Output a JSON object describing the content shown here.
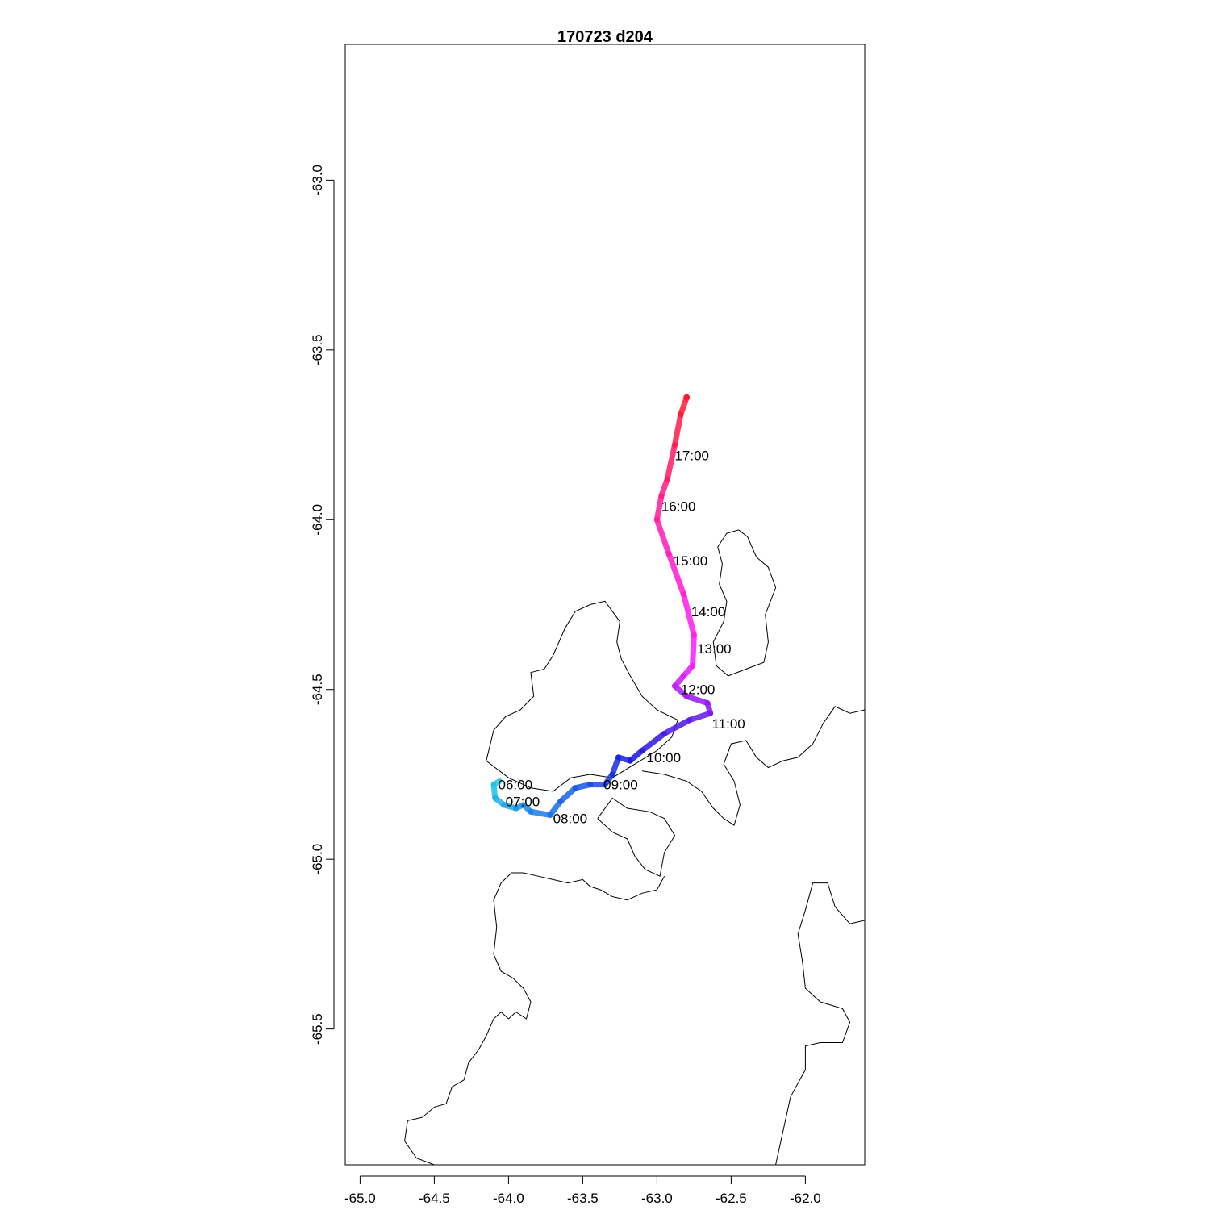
{
  "title": "170723   d204",
  "chart_data": {
    "type": "map-track",
    "title": "170723   d204",
    "xlabel": "",
    "ylabel": "",
    "xlim": [
      -65.1,
      -61.6
    ],
    "ylim": [
      -65.9,
      -62.6
    ],
    "x_ticks": [
      -65.0,
      -64.5,
      -64.0,
      -63.5,
      -63.0,
      -62.5,
      -62.0
    ],
    "x_tick_labels": [
      "-65.0",
      "-64.5",
      "-64.0",
      "-63.5",
      "-63.0",
      "-62.5",
      "-62.0"
    ],
    "y_ticks": [
      -63.0,
      -63.5,
      -64.0,
      -64.5,
      -65.0,
      -65.5
    ],
    "y_tick_labels": [
      "-63.0",
      "-63.5",
      "-64.0",
      "-64.5",
      "-65.0",
      "-65.5"
    ],
    "track": [
      [
        -64.06,
        -64.77
      ],
      [
        -64.1,
        -64.78
      ],
      [
        -64.09,
        -64.82
      ],
      [
        -64.03,
        -64.84
      ],
      [
        -63.95,
        -64.85
      ],
      [
        -63.9,
        -64.84
      ],
      [
        -63.85,
        -64.86
      ],
      [
        -63.72,
        -64.87
      ],
      [
        -63.65,
        -64.83
      ],
      [
        -63.55,
        -64.79
      ],
      [
        -63.45,
        -64.78
      ],
      [
        -63.35,
        -64.78
      ],
      [
        -63.3,
        -64.75
      ],
      [
        -63.26,
        -64.7
      ],
      [
        -63.18,
        -64.71
      ],
      [
        -63.1,
        -64.68
      ],
      [
        -62.95,
        -64.63
      ],
      [
        -62.78,
        -64.59
      ],
      [
        -62.64,
        -64.57
      ],
      [
        -62.66,
        -64.54
      ],
      [
        -62.8,
        -64.52
      ],
      [
        -62.88,
        -64.49
      ],
      [
        -62.82,
        -64.46
      ],
      [
        -62.76,
        -64.43
      ],
      [
        -62.75,
        -64.34
      ],
      [
        -62.82,
        -64.22
      ],
      [
        -62.92,
        -64.1
      ],
      [
        -63.0,
        -64.0
      ],
      [
        -62.97,
        -63.93
      ],
      [
        -62.93,
        -63.88
      ],
      [
        -62.88,
        -63.78
      ],
      [
        -62.84,
        -63.69
      ],
      [
        -62.8,
        -63.64
      ]
    ],
    "time_labels": [
      {
        "text": "06:00",
        "x": -64.07,
        "y": -64.78
      },
      {
        "text": "07:00",
        "x": -64.02,
        "y": -64.83
      },
      {
        "text": "08:00",
        "x": -63.7,
        "y": -64.88
      },
      {
        "text": "09:00",
        "x": -63.36,
        "y": -64.78
      },
      {
        "text": "10:00",
        "x": -63.07,
        "y": -64.7
      },
      {
        "text": "11:00",
        "x": -62.63,
        "y": -64.6
      },
      {
        "text": "12:00",
        "x": -62.84,
        "y": -64.5
      },
      {
        "text": "13:00",
        "x": -62.73,
        "y": -64.38
      },
      {
        "text": "14:00",
        "x": -62.77,
        "y": -64.27
      },
      {
        "text": "15:00",
        "x": -62.89,
        "y": -64.12
      },
      {
        "text": "16:00",
        "x": -62.97,
        "y": -63.96
      },
      {
        "text": "17:00",
        "x": -62.88,
        "y": -63.81
      }
    ],
    "colors": {
      "track_start": "#1ecbeb",
      "track_mid": "#1515e0",
      "track_magenta": "#ff1aff",
      "track_end": "#ff1a30",
      "coastline": "#000000"
    }
  },
  "coastlines": [
    [
      [
        -64.15,
        -64.71
      ],
      [
        -64.1,
        -64.62
      ],
      [
        -64.02,
        -64.58
      ],
      [
        -63.92,
        -64.56
      ],
      [
        -63.83,
        -64.52
      ],
      [
        -63.85,
        -64.45
      ],
      [
        -63.76,
        -64.44
      ],
      [
        -63.7,
        -64.4
      ],
      [
        -63.62,
        -64.32
      ],
      [
        -63.55,
        -64.27
      ],
      [
        -63.45,
        -64.25
      ],
      [
        -63.35,
        -64.24
      ],
      [
        -63.3,
        -64.27
      ],
      [
        -63.25,
        -64.3
      ],
      [
        -63.27,
        -64.36
      ],
      [
        -63.24,
        -64.41
      ],
      [
        -63.18,
        -64.46
      ],
      [
        -63.1,
        -64.52
      ],
      [
        -63.0,
        -64.56
      ],
      [
        -62.86,
        -64.59
      ],
      [
        -62.9,
        -64.64
      ],
      [
        -63.0,
        -64.68
      ],
      [
        -63.15,
        -64.72
      ],
      [
        -63.3,
        -64.76
      ],
      [
        -63.45,
        -64.75
      ],
      [
        -63.58,
        -64.76
      ],
      [
        -63.7,
        -64.8
      ],
      [
        -63.85,
        -64.79
      ],
      [
        -64.0,
        -64.76
      ],
      [
        -64.15,
        -64.71
      ]
    ],
    [
      [
        -62.53,
        -64.04
      ],
      [
        -62.45,
        -64.03
      ],
      [
        -62.39,
        -64.05
      ],
      [
        -62.33,
        -64.11
      ],
      [
        -62.25,
        -64.14
      ],
      [
        -62.2,
        -64.2
      ],
      [
        -62.27,
        -64.28
      ],
      [
        -62.25,
        -64.36
      ],
      [
        -62.28,
        -64.42
      ],
      [
        -62.4,
        -64.44
      ],
      [
        -62.52,
        -64.46
      ],
      [
        -62.6,
        -64.43
      ],
      [
        -62.62,
        -64.36
      ],
      [
        -62.55,
        -64.3
      ],
      [
        -62.53,
        -64.24
      ],
      [
        -62.58,
        -64.19
      ],
      [
        -62.56,
        -64.13
      ],
      [
        -62.59,
        -64.08
      ],
      [
        -62.53,
        -64.04
      ]
    ],
    [
      [
        -63.1,
        -64.74
      ],
      [
        -62.95,
        -64.75
      ],
      [
        -62.8,
        -64.77
      ],
      [
        -62.7,
        -64.8
      ],
      [
        -62.62,
        -64.85
      ],
      [
        -62.55,
        -64.88
      ],
      [
        -62.48,
        -64.9
      ],
      [
        -62.44,
        -64.84
      ],
      [
        -62.48,
        -64.77
      ],
      [
        -62.55,
        -64.72
      ],
      [
        -62.5,
        -64.66
      ],
      [
        -62.4,
        -64.65
      ],
      [
        -62.33,
        -64.7
      ],
      [
        -62.25,
        -64.73
      ],
      [
        -62.15,
        -64.71
      ],
      [
        -62.05,
        -64.7
      ],
      [
        -61.95,
        -64.66
      ],
      [
        -61.88,
        -64.6
      ],
      [
        -61.8,
        -64.55
      ],
      [
        -61.7,
        -64.57
      ],
      [
        -61.6,
        -64.56
      ]
    ],
    [
      [
        -63.4,
        -64.88
      ],
      [
        -63.3,
        -64.92
      ],
      [
        -63.2,
        -64.94
      ],
      [
        -63.15,
        -64.99
      ],
      [
        -63.08,
        -65.03
      ],
      [
        -62.98,
        -65.05
      ],
      [
        -62.95,
        -64.98
      ],
      [
        -62.88,
        -64.93
      ],
      [
        -62.95,
        -64.88
      ],
      [
        -63.05,
        -64.86
      ],
      [
        -63.2,
        -64.85
      ],
      [
        -63.3,
        -64.82
      ],
      [
        -63.4,
        -64.88
      ]
    ],
    [
      [
        -64.5,
        -65.9
      ],
      [
        -64.62,
        -65.88
      ],
      [
        -64.7,
        -65.83
      ],
      [
        -64.68,
        -65.77
      ],
      [
        -64.58,
        -65.76
      ],
      [
        -64.5,
        -65.73
      ],
      [
        -64.42,
        -65.72
      ],
      [
        -64.38,
        -65.67
      ],
      [
        -64.3,
        -65.65
      ],
      [
        -64.27,
        -65.6
      ],
      [
        -64.2,
        -65.56
      ],
      [
        -64.15,
        -65.52
      ],
      [
        -64.1,
        -65.47
      ],
      [
        -64.05,
        -65.45
      ],
      [
        -64.0,
        -65.47
      ],
      [
        -63.95,
        -65.45
      ],
      [
        -63.88,
        -65.47
      ],
      [
        -63.85,
        -65.42
      ],
      [
        -63.9,
        -65.38
      ],
      [
        -63.97,
        -65.35
      ],
      [
        -64.05,
        -65.33
      ],
      [
        -64.1,
        -65.28
      ],
      [
        -64.08,
        -65.2
      ],
      [
        -64.1,
        -65.12
      ],
      [
        -64.05,
        -65.07
      ],
      [
        -63.98,
        -65.04
      ],
      [
        -63.9,
        -65.04
      ],
      [
        -63.8,
        -65.05
      ],
      [
        -63.7,
        -65.06
      ],
      [
        -63.6,
        -65.07
      ],
      [
        -63.5,
        -65.06
      ],
      [
        -63.45,
        -65.08
      ],
      [
        -63.38,
        -65.09
      ],
      [
        -63.3,
        -65.11
      ],
      [
        -63.2,
        -65.12
      ],
      [
        -63.1,
        -65.1
      ],
      [
        -63.0,
        -65.09
      ],
      [
        -62.95,
        -65.05
      ]
    ],
    [
      [
        -62.2,
        -65.9
      ],
      [
        -62.15,
        -65.8
      ],
      [
        -62.1,
        -65.7
      ],
      [
        -62.0,
        -65.62
      ],
      [
        -62.0,
        -65.55
      ],
      [
        -61.9,
        -65.54
      ],
      [
        -61.75,
        -65.54
      ],
      [
        -61.7,
        -65.48
      ],
      [
        -61.75,
        -65.44
      ],
      [
        -61.9,
        -65.42
      ],
      [
        -62.0,
        -65.38
      ],
      [
        -62.02,
        -65.3
      ],
      [
        -62.05,
        -65.22
      ],
      [
        -62.0,
        -65.15
      ],
      [
        -61.95,
        -65.07
      ],
      [
        -61.85,
        -65.07
      ],
      [
        -61.8,
        -65.14
      ],
      [
        -61.7,
        -65.19
      ],
      [
        -61.6,
        -65.18
      ]
    ]
  ]
}
